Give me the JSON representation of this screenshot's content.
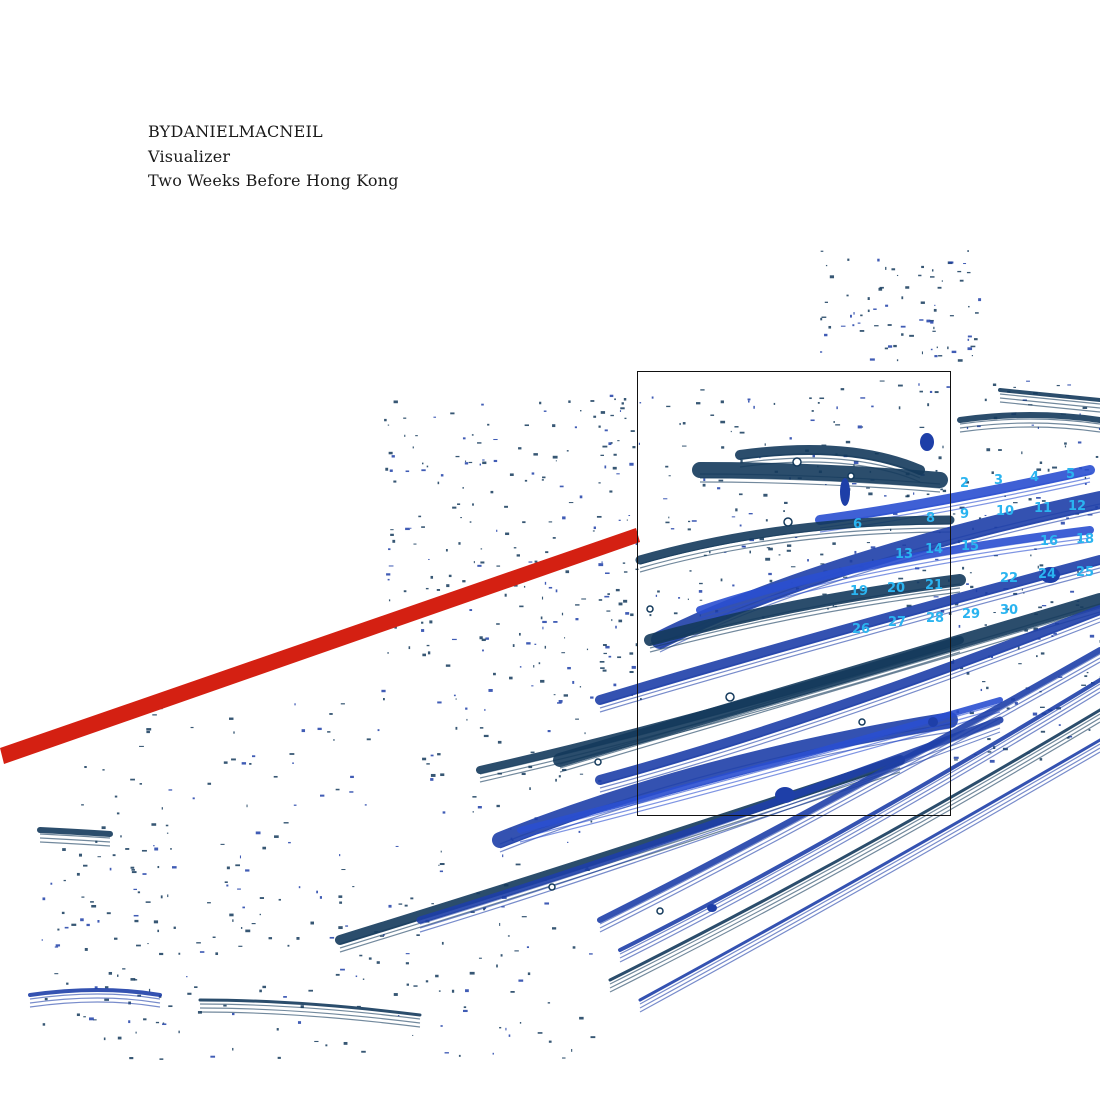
{
  "header": {
    "artist": "BYDANIELMACNEIL",
    "subtitle": "Visualizer",
    "title": "Two Weeks Before Hong Kong"
  },
  "artwork": {
    "colors": {
      "background": "#ffffff",
      "ink_dark": "#143a5c",
      "ink_blue": "#1e3fa8",
      "ink_bright": "#2a4fd0",
      "label_cyan": "#2ab4f0",
      "stroke_red": "#d42012",
      "frame": "#111111"
    },
    "calendar_numbers": [
      "2",
      "3",
      "4",
      "5",
      "6",
      "8",
      "9",
      "10",
      "11",
      "12",
      "13",
      "14",
      "15",
      "16",
      "18",
      "19",
      "20",
      "21",
      "22",
      "24",
      "25",
      "26",
      "27",
      "28",
      "29",
      "30"
    ]
  }
}
